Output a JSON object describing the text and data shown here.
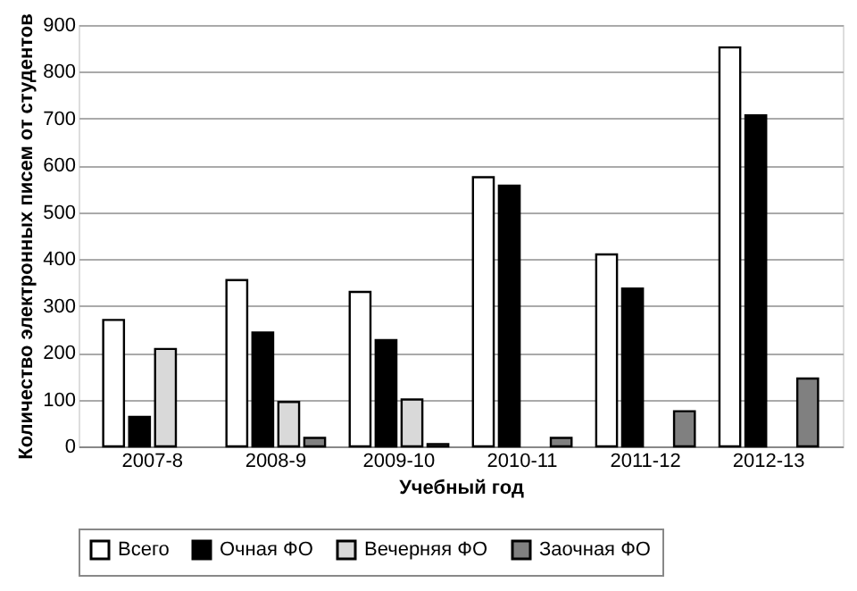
{
  "chart_data": {
    "type": "bar",
    "xlabel": "Учебный год",
    "ylabel": "Количество электронных писем от студентов",
    "categories": [
      "2007-8",
      "2008-9",
      "2009-10",
      "2010-11",
      "2011-12",
      "2012-13"
    ],
    "series": [
      {
        "name": "Всего",
        "color": "#ffffff",
        "values": [
          270,
          355,
          330,
          575,
          410,
          852
        ]
      },
      {
        "name": "Очная ФО",
        "color": "#000000",
        "values": [
          63,
          243,
          227,
          557,
          337,
          707
        ]
      },
      {
        "name": "Вечерняя ФО",
        "color": "#d9d9d9",
        "values": [
          208,
          95,
          100,
          null,
          null,
          null
        ]
      },
      {
        "name": "Заочная ФО",
        "color": "#808080",
        "values": [
          null,
          18,
          5,
          18,
          75,
          145
        ]
      }
    ],
    "ylim": [
      0,
      900
    ],
    "yticks": [
      0,
      100,
      200,
      300,
      400,
      500,
      600,
      700,
      800,
      900
    ],
    "grid": "y",
    "legend": "bottom"
  }
}
